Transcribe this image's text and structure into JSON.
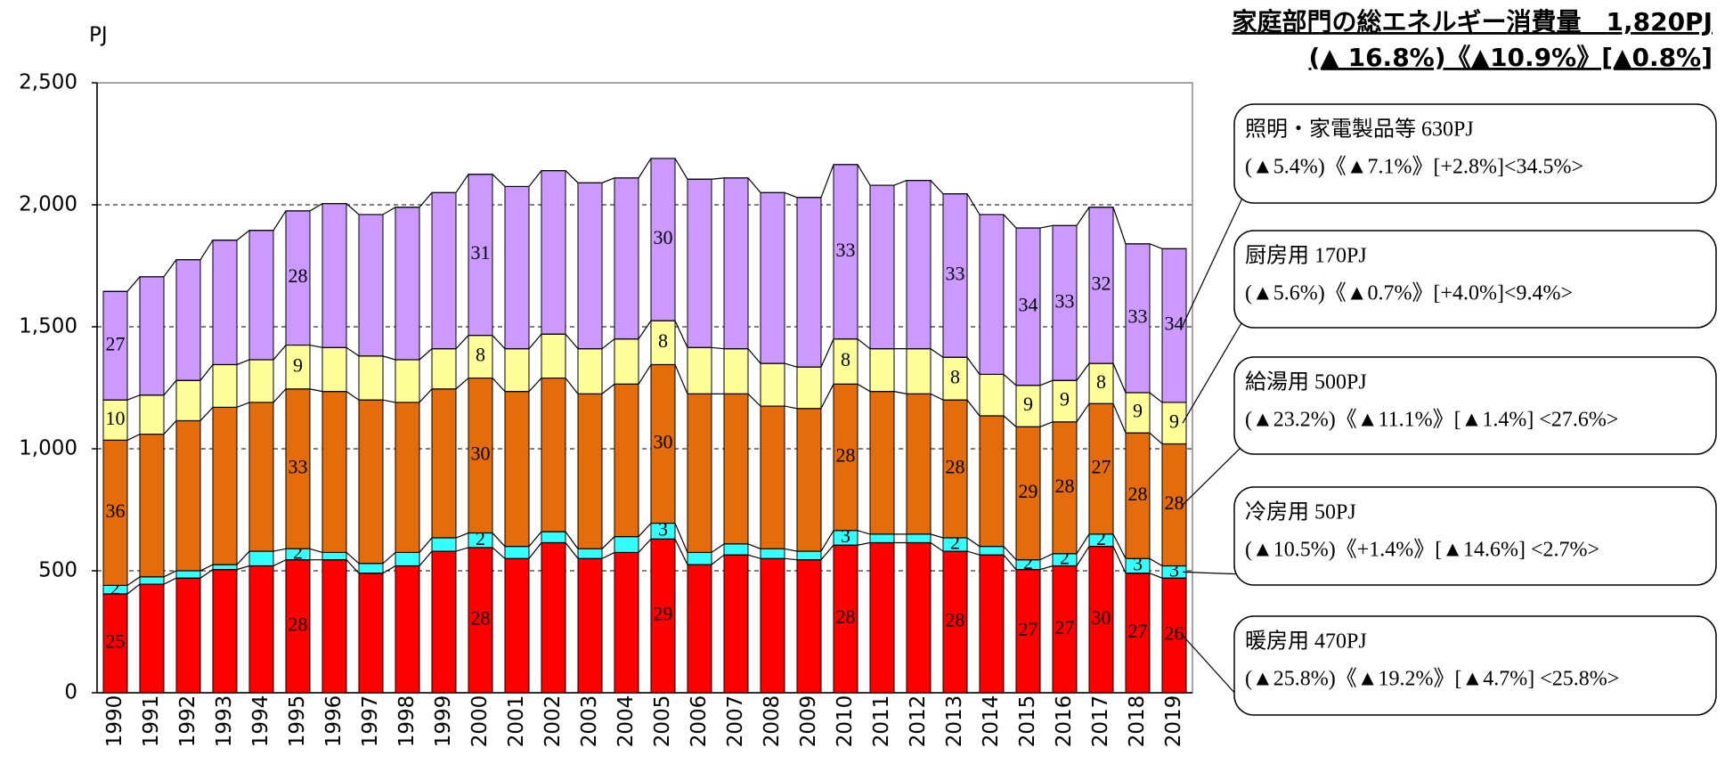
{
  "chart_data": {
    "type": "stacked_bar",
    "title": "家庭部門の総エネルギー消費量　1,820PJ",
    "subtitle": "(▲ 16.8%)《▲10.9%》[▲0.8%]",
    "y_label": "PJ",
    "categories": [
      "1990",
      "1991",
      "1992",
      "1993",
      "1994",
      "1995",
      "1996",
      "1997",
      "1998",
      "1999",
      "2000",
      "2001",
      "2002",
      "2003",
      "2004",
      "2005",
      "2006",
      "2007",
      "2008",
      "2009",
      "2010",
      "2011",
      "2012",
      "2013",
      "2014",
      "2015",
      "2016",
      "2017",
      "2018",
      "2019"
    ],
    "ylim": [
      0,
      2500
    ],
    "yticks": [
      0,
      500,
      {
        "value": 1000,
        "label": "1,000"
      },
      {
        "value": 1500,
        "label": "1,500"
      },
      {
        "value": 2000,
        "label": "2,000"
      },
      {
        "value": 2500,
        "label": "2,500"
      }
    ],
    "grid": true,
    "series": [
      {
        "name": "暖房用",
        "color": "#ff0000",
        "values": [
          405,
          445,
          470,
          505,
          520,
          545,
          545,
          490,
          520,
          580,
          595,
          550,
          615,
          550,
          575,
          630,
          525,
          565,
          550,
          545,
          605,
          615,
          615,
          580,
          565,
          505,
          520,
          600,
          490,
          470
        ],
        "share_labels": [
          25,
          null,
          null,
          null,
          null,
          28,
          null,
          null,
          null,
          null,
          28,
          null,
          null,
          null,
          null,
          29,
          null,
          null,
          null,
          null,
          28,
          null,
          null,
          28,
          null,
          27,
          27,
          30,
          27,
          26
        ]
      },
      {
        "name": "冷房用",
        "color": "#33ffff",
        "values": [
          35,
          30,
          30,
          20,
          60,
          45,
          30,
          40,
          55,
          55,
          60,
          50,
          45,
          40,
          65,
          65,
          50,
          45,
          40,
          35,
          60,
          35,
          35,
          55,
          35,
          40,
          50,
          50,
          60,
          50
        ],
        "share_labels": [
          2,
          null,
          null,
          null,
          null,
          2,
          null,
          null,
          null,
          null,
          2,
          null,
          null,
          null,
          null,
          3,
          null,
          null,
          null,
          null,
          3,
          null,
          null,
          2,
          null,
          2,
          2,
          2,
          3,
          3
        ]
      },
      {
        "name": "給湯用",
        "color": "#e46c0a",
        "values": [
          595,
          585,
          615,
          645,
          610,
          655,
          660,
          670,
          615,
          610,
          635,
          635,
          630,
          635,
          625,
          650,
          650,
          615,
          585,
          585,
          600,
          585,
          575,
          565,
          535,
          545,
          540,
          535,
          515,
          500
        ],
        "share_labels": [
          36,
          null,
          null,
          null,
          null,
          33,
          null,
          null,
          null,
          null,
          30,
          null,
          null,
          null,
          null,
          30,
          null,
          null,
          null,
          null,
          28,
          null,
          null,
          28,
          null,
          29,
          28,
          27,
          28,
          28
        ]
      },
      {
        "name": "厨房用",
        "color": "#ffff99",
        "values": [
          165,
          160,
          165,
          175,
          175,
          180,
          180,
          180,
          175,
          165,
          175,
          175,
          180,
          185,
          185,
          180,
          190,
          185,
          175,
          170,
          185,
          175,
          185,
          175,
          170,
          170,
          170,
          165,
          165,
          170
        ],
        "share_labels": [
          10,
          null,
          null,
          null,
          null,
          9,
          null,
          null,
          null,
          null,
          8,
          null,
          null,
          null,
          null,
          8,
          null,
          null,
          null,
          null,
          8,
          null,
          null,
          8,
          null,
          9,
          9,
          8,
          9,
          9
        ]
      },
      {
        "name": "照明・家電製品等",
        "color": "#cc99ff",
        "values": [
          445,
          485,
          495,
          510,
          530,
          550,
          590,
          580,
          625,
          640,
          660,
          665,
          670,
          680,
          660,
          665,
          690,
          700,
          700,
          695,
          715,
          670,
          690,
          670,
          655,
          645,
          635,
          640,
          610,
          630
        ],
        "share_labels": [
          27,
          null,
          null,
          null,
          null,
          28,
          null,
          null,
          null,
          null,
          31,
          null,
          null,
          null,
          null,
          30,
          null,
          null,
          null,
          null,
          33,
          null,
          null,
          33,
          null,
          34,
          33,
          32,
          33,
          34
        ]
      }
    ],
    "callouts": [
      {
        "label": "照明・家電製品等 630PJ",
        "detail": "(▲5.4%)《▲7.1%》[+2.8%]<34.5%>"
      },
      {
        "label": "厨房用 170PJ",
        "detail": "(▲5.6%)《▲0.7%》[+4.0%]<9.4%>"
      },
      {
        "label": "給湯用 500PJ",
        "detail": "(▲23.2%)《▲11.1%》[▲1.4%] <27.6%>"
      },
      {
        "label": "冷房用 50PJ",
        "detail": "(▲10.5%)《+1.4%》[▲14.6%] <2.7%>"
      },
      {
        "label": "暖房用 470PJ",
        "detail": "(▲25.8%)《▲19.2%》[▲4.7%] <25.8%>"
      }
    ]
  }
}
